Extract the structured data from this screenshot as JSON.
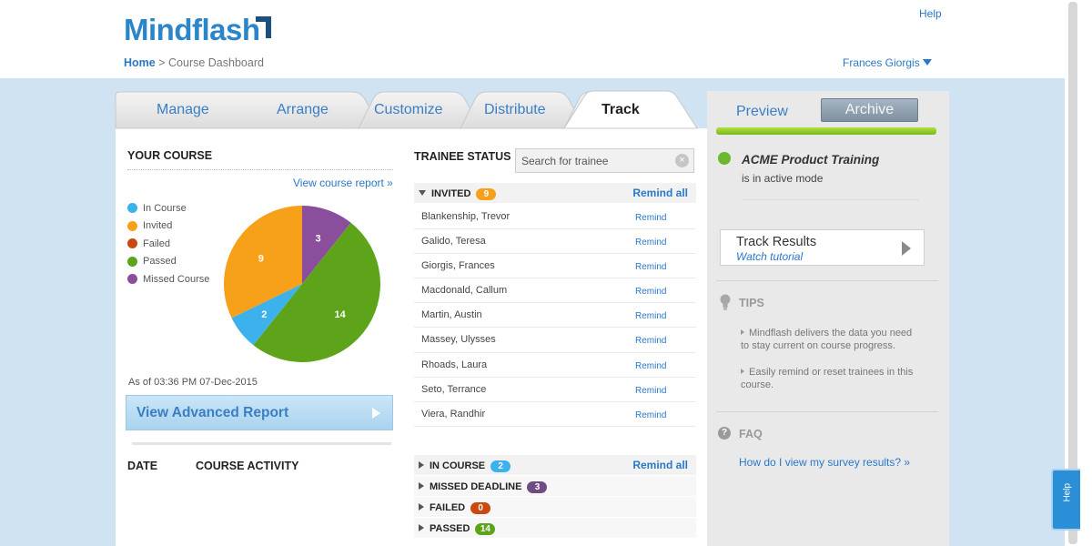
{
  "app": {
    "logo": "Mindflash",
    "help": "Help",
    "user": "Frances Giorgis"
  },
  "breadcrumb": {
    "home": "Home",
    "separator": ">",
    "current": "Course Dashboard"
  },
  "tabs": [
    "Manage",
    "Arrange",
    "Customize",
    "Distribute",
    "Track"
  ],
  "right_tabs": {
    "preview": "Preview",
    "archive": "Archive"
  },
  "your_course": {
    "heading": "YOUR COURSE",
    "view_report": "View course report »",
    "legend": [
      {
        "label": "In Course",
        "color": "#3db1ec"
      },
      {
        "label": "Invited",
        "color": "#f7a01a"
      },
      {
        "label": "Failed",
        "color": "#c84a11"
      },
      {
        "label": "Passed",
        "color": "#5ea41a"
      },
      {
        "label": "Missed Course",
        "color": "#8b4e9d"
      }
    ],
    "chart_data": {
      "type": "pie",
      "slices": [
        {
          "label": "Missed Course",
          "value": 3,
          "color": "#8b4e9d"
        },
        {
          "label": "Passed",
          "value": 14,
          "color": "#5ea41a"
        },
        {
          "label": "In Course",
          "value": 2,
          "color": "#3db1ec"
        },
        {
          "label": "Invited",
          "value": 9,
          "color": "#f7a01a"
        }
      ]
    },
    "timestamp": "As of 03:36 PM 07-Dec-2015",
    "advanced_report": "View Advanced Report",
    "date_heading": "DATE",
    "activity_heading": "COURSE ACTIVITY"
  },
  "trainee_status": {
    "heading": "TRAINEE STATUS",
    "search_placeholder": "Search for trainee",
    "invited": {
      "label": "INVITED",
      "count": "9",
      "remind_all": "Remind all"
    },
    "trainees": [
      {
        "name": "Blankenship, Trevor",
        "action": "Remind"
      },
      {
        "name": "Galido, Teresa",
        "action": "Remind"
      },
      {
        "name": "Giorgis, Frances",
        "action": "Remind"
      },
      {
        "name": "Macdonald, Callum",
        "action": "Remind"
      },
      {
        "name": "Martin, Austin",
        "action": "Remind"
      },
      {
        "name": "Massey, Ulysses",
        "action": "Remind"
      },
      {
        "name": "Rhoads, Laura",
        "action": "Remind"
      },
      {
        "name": "Seto, Terrance",
        "action": "Remind"
      },
      {
        "name": "Viera, Randhir",
        "action": "Remind"
      }
    ],
    "in_course": {
      "label": "IN COURSE",
      "count": "2",
      "remind_all": "Remind all"
    },
    "missed": {
      "label": "MISSED DEADLINE",
      "count": "3"
    },
    "failed": {
      "label": "FAILED",
      "count": "0"
    },
    "passed": {
      "label": "PASSED",
      "count": "14"
    }
  },
  "sidebar": {
    "course_name": "ACME Product Training",
    "course_status": "is in active mode",
    "track_title": "Track Results",
    "track_sub": "Watch tutorial",
    "tips_heading": "TIPS",
    "tips": [
      "Mindflash delivers the data you need to stay current on course progress.",
      "Easily remind or reset trainees in this course."
    ],
    "faq_heading": "FAQ",
    "faq_link": "How do I view my survey results? »",
    "faq_icon": "?"
  },
  "help_tab": "Help"
}
